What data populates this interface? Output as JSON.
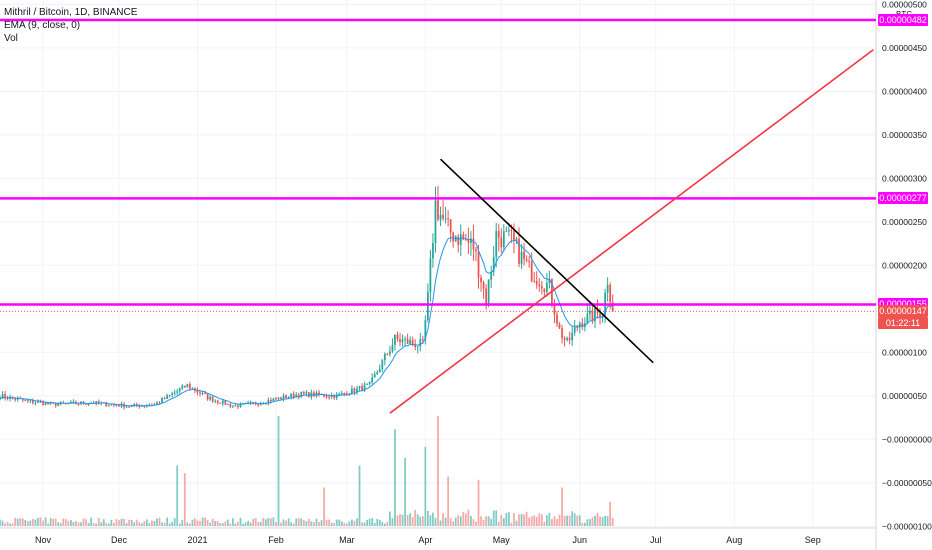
{
  "header": {
    "title": "Mithril / Bitcoin, 1D, BINANCE",
    "ema_label": "EMA (9, close, 0)",
    "vol_label": "Vol"
  },
  "currency_label": "BTC",
  "price_tags": {
    "level_top": "0.00000482",
    "level_mid": "0.00000277",
    "level_low": "0.00000155",
    "last_price": "0.00000147",
    "countdown": "01:22:11"
  },
  "colors": {
    "up": "#26a69a",
    "down": "#ef5350",
    "ema": "#2196f3",
    "level": "#ff00ff",
    "trend_support": "#f23645",
    "trend_resistance": "#000000",
    "volume_up": "#80cbc4",
    "volume_down": "#f7a9a7"
  },
  "chart_data": {
    "type": "candlestick",
    "title": "Mithril / Bitcoin, 1D, BINANCE",
    "x_ticks": [
      {
        "label": "Nov",
        "date": "2020-11-01"
      },
      {
        "label": "Dec",
        "date": "2020-12-01"
      },
      {
        "label": "2021",
        "date": "2021-01-01"
      },
      {
        "label": "Feb",
        "date": "2021-02-01"
      },
      {
        "label": "Mar",
        "date": "2021-03-01"
      },
      {
        "label": "Apr",
        "date": "2021-04-01"
      },
      {
        "label": "May",
        "date": "2021-05-01"
      },
      {
        "label": "Jun",
        "date": "2021-06-01"
      },
      {
        "label": "Jul",
        "date": "2021-07-01"
      },
      {
        "label": "Aug",
        "date": "2021-08-01"
      },
      {
        "label": "Sep",
        "date": "2021-09-01"
      }
    ],
    "y_ticks": [
      "0.00000500",
      "0.00000450",
      "0.00000400",
      "0.00000350",
      "0.00000300",
      "0.00000250",
      "0.00000200",
      "0.00000100",
      "0.00000050",
      "−0.00000000",
      "−0.00000050",
      "−0.00000100"
    ],
    "y_tick_values": [
      500,
      450,
      400,
      350,
      300,
      250,
      200,
      100,
      50,
      0,
      -50,
      -100
    ],
    "y_unit_scale": 1e-08,
    "ylim": [
      -102,
      505
    ],
    "xlim": [
      "2020-10-15",
      "2021-09-26"
    ],
    "horizontal_levels": [
      482,
      277,
      155
    ],
    "last_price": 147,
    "trendlines": [
      {
        "name": "support",
        "from": {
          "date": "2021-03-18",
          "value": 30
        },
        "to": {
          "date": "2021-09-25",
          "value": 448
        }
      },
      {
        "name": "resistance",
        "from": {
          "date": "2021-04-07",
          "value": 322
        },
        "to": {
          "date": "2021-06-30",
          "value": 88
        }
      }
    ],
    "price_anchors": [
      {
        "date": "2020-10-15",
        "value": 50
      },
      {
        "date": "2020-10-25",
        "value": 44
      },
      {
        "date": "2020-11-05",
        "value": 40
      },
      {
        "date": "2020-11-20",
        "value": 42
      },
      {
        "date": "2020-12-05",
        "value": 38
      },
      {
        "date": "2020-12-15",
        "value": 40
      },
      {
        "date": "2020-12-28",
        "value": 62
      },
      {
        "date": "2021-01-05",
        "value": 48
      },
      {
        "date": "2021-01-15",
        "value": 38
      },
      {
        "date": "2021-01-25",
        "value": 42
      },
      {
        "date": "2021-02-10",
        "value": 52
      },
      {
        "date": "2021-02-25",
        "value": 50
      },
      {
        "date": "2021-03-10",
        "value": 62
      },
      {
        "date": "2021-03-20",
        "value": 115
      },
      {
        "date": "2021-03-31",
        "value": 108
      },
      {
        "date": "2021-04-02",
        "value": 162
      },
      {
        "date": "2021-04-05",
        "value": 270
      },
      {
        "date": "2021-04-10",
        "value": 240
      },
      {
        "date": "2021-04-20",
        "value": 222
      },
      {
        "date": "2021-04-25",
        "value": 160
      },
      {
        "date": "2021-04-29",
        "value": 235
      },
      {
        "date": "2021-05-05",
        "value": 228
      },
      {
        "date": "2021-05-12",
        "value": 195
      },
      {
        "date": "2021-05-20",
        "value": 175
      },
      {
        "date": "2021-05-24",
        "value": 125
      },
      {
        "date": "2021-05-27",
        "value": 110
      },
      {
        "date": "2021-06-01",
        "value": 135
      },
      {
        "date": "2021-06-05",
        "value": 140
      },
      {
        "date": "2021-06-10",
        "value": 148
      },
      {
        "date": "2021-06-12",
        "value": 185
      },
      {
        "date": "2021-06-14",
        "value": 147
      }
    ],
    "volume_spikes": [
      {
        "date": "2020-12-24",
        "value": 0.55
      },
      {
        "date": "2020-12-27",
        "value": 0.48
      },
      {
        "date": "2021-02-02",
        "value": 1.0
      },
      {
        "date": "2021-02-20",
        "value": 0.35
      },
      {
        "date": "2021-03-06",
        "value": 0.55
      },
      {
        "date": "2021-03-20",
        "value": 0.88
      },
      {
        "date": "2021-03-24",
        "value": 0.62
      },
      {
        "date": "2021-04-01",
        "value": 0.72
      },
      {
        "date": "2021-04-06",
        "value": 1.0
      },
      {
        "date": "2021-04-10",
        "value": 0.45
      },
      {
        "date": "2021-04-22",
        "value": 0.42
      },
      {
        "date": "2021-05-25",
        "value": 0.35
      },
      {
        "date": "2021-06-13",
        "value": 0.22
      }
    ],
    "grid": true,
    "legend_position": "top-left"
  }
}
